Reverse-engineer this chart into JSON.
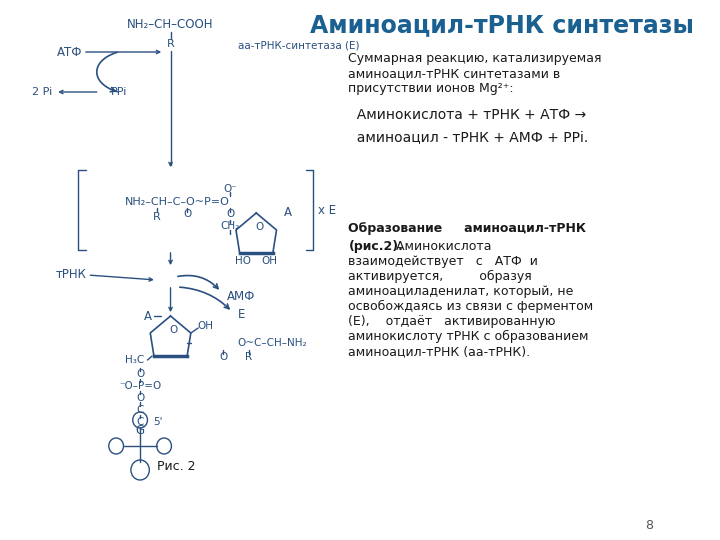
{
  "title": "Аминоацил-тРНК синтетазы",
  "title_color": "#1a6090",
  "title_fontsize": 17,
  "bg_color": "#FFFFFF",
  "text_color": "#1a1a1a",
  "diagram_color": "#2a5080",
  "summary_header": "Суммарная реакцию, катализируемая\nаминоацил-тРНК синтетазами в\nприсутствии ионов Mg²⁺:",
  "equation1": "  Аминокислота + тРНК + АТФ →",
  "equation2": "  аминоацил - тРНК + АМФ + РРi.",
  "page_num": "8",
  "fig_caption": "Рис. 2"
}
